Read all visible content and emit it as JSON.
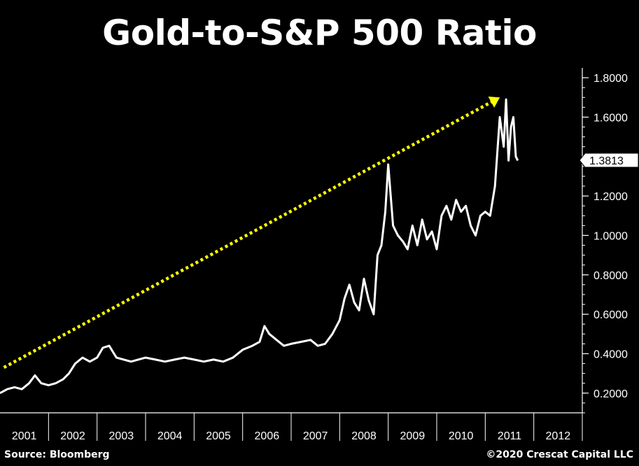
{
  "title": "Gold-to-S&P 500 Ratio",
  "source": "Source: Bloomberg",
  "copyright": "©2020 Crescat Capital LLC",
  "colors": {
    "background": "#000000",
    "line": "#ffffff",
    "trend_arrow": "#ffff00",
    "axis": "#ffffff"
  },
  "chart_data": {
    "type": "line",
    "title": "Gold-to-S&P 500 Ratio",
    "xlabel": "",
    "ylabel": "",
    "x_tick_labels": [
      "2001",
      "2002",
      "2003",
      "2004",
      "2005",
      "2006",
      "2007",
      "2008",
      "2009",
      "2010",
      "2011",
      "2012"
    ],
    "y_tick_labels": [
      "0.2000",
      "0.4000",
      "0.6000",
      "0.8000",
      "1.0000",
      "1.2000",
      "1.4000",
      "1.6000",
      "1.8000"
    ],
    "ylim": [
      0.1,
      1.85
    ],
    "xlim": [
      2001.0,
      2013.0
    ],
    "last_value_label": "1.3813",
    "grid": false,
    "y_axis_side": "right",
    "series": [
      {
        "x": [
          2001.0,
          2001.15,
          2001.3,
          2001.45,
          2001.6,
          2001.72,
          2001.85,
          2002.0,
          2002.15,
          2002.3,
          2002.42,
          2002.55,
          2002.7,
          2002.85,
          2003.0,
          2003.12,
          2003.25,
          2003.4,
          2003.55,
          2003.7,
          2003.85,
          2004.0,
          2004.2,
          2004.4,
          2004.6,
          2004.8,
          2005.0,
          2005.2,
          2005.4,
          2005.6,
          2005.8,
          2006.0,
          2006.2,
          2006.35,
          2006.45,
          2006.55,
          2006.7,
          2006.85,
          2007.0,
          2007.2,
          2007.4,
          2007.55,
          2007.7,
          2007.85,
          2008.0,
          2008.1,
          2008.2,
          2008.3,
          2008.4,
          2008.5,
          2008.6,
          2008.7,
          2008.78,
          2008.86,
          2008.94,
          2009.0,
          2009.1,
          2009.2,
          2009.3,
          2009.4,
          2009.5,
          2009.6,
          2009.7,
          2009.8,
          2009.9,
          2010.0,
          2010.1,
          2010.2,
          2010.3,
          2010.4,
          2010.5,
          2010.6,
          2010.7,
          2010.8,
          2010.9,
          2011.0,
          2011.1,
          2011.2,
          2011.3,
          2011.38,
          2011.43,
          2011.48,
          2011.53,
          2011.58,
          2011.63,
          2011.67
        ],
        "y": [
          0.2,
          0.22,
          0.23,
          0.22,
          0.25,
          0.29,
          0.25,
          0.24,
          0.25,
          0.27,
          0.3,
          0.35,
          0.38,
          0.36,
          0.38,
          0.43,
          0.44,
          0.38,
          0.37,
          0.36,
          0.37,
          0.38,
          0.37,
          0.36,
          0.37,
          0.38,
          0.37,
          0.36,
          0.37,
          0.36,
          0.38,
          0.42,
          0.44,
          0.46,
          0.54,
          0.5,
          0.47,
          0.44,
          0.45,
          0.46,
          0.47,
          0.44,
          0.45,
          0.5,
          0.57,
          0.68,
          0.75,
          0.66,
          0.62,
          0.78,
          0.67,
          0.6,
          0.9,
          0.95,
          1.12,
          1.36,
          1.05,
          1.0,
          0.97,
          0.93,
          1.05,
          0.95,
          1.08,
          0.98,
          1.02,
          0.93,
          1.1,
          1.15,
          1.08,
          1.18,
          1.12,
          1.15,
          1.05,
          1.0,
          1.1,
          1.12,
          1.1,
          1.25,
          1.6,
          1.45,
          1.69,
          1.38,
          1.55,
          1.6,
          1.4,
          1.38
        ]
      }
    ],
    "trend_arrow": {
      "x": [
        2001.08,
        2011.3
      ],
      "y": [
        0.33,
        1.7
      ]
    }
  }
}
